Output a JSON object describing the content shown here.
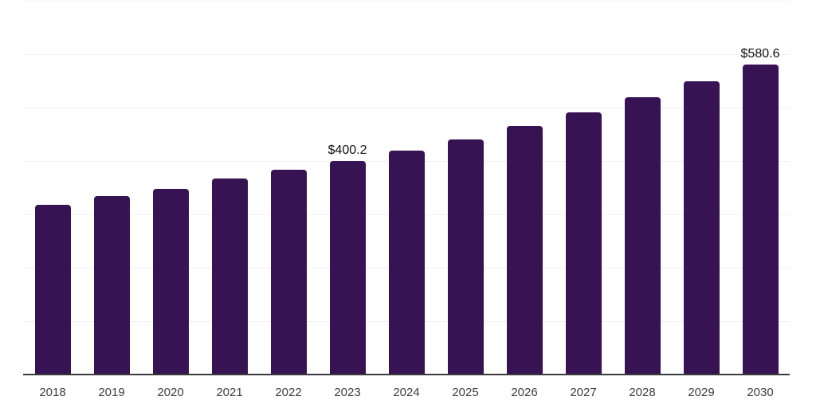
{
  "chart": {
    "background": "#ffffff",
    "bar_color": "#371353",
    "grid_color": "#f0f0f0",
    "axis_line_color": "#3b3b3b",
    "tick_label_color": "#3e3e3e",
    "data_label_color": "#101010"
  },
  "chart_data": {
    "type": "bar",
    "title": "",
    "xlabel": "",
    "ylabel": "",
    "categories": [
      "2018",
      "2019",
      "2020",
      "2021",
      "2022",
      "2023",
      "2024",
      "2025",
      "2026",
      "2027",
      "2028",
      "2029",
      "2030"
    ],
    "values": [
      317.8,
      333.8,
      347.7,
      366.8,
      383.9,
      400.2,
      420.0,
      440.7,
      465.5,
      491.8,
      519.6,
      549.1,
      580.6
    ],
    "data_labels": {
      "2023": "$400.2",
      "2030": "$580.6"
    },
    "currency_prefix": "$",
    "ylim": [
      0,
      700
    ],
    "grid_step": 100,
    "grid": true,
    "legend_position": "none",
    "y_axis_labels_visible": false,
    "bar_corner_radius_px": 4
  }
}
